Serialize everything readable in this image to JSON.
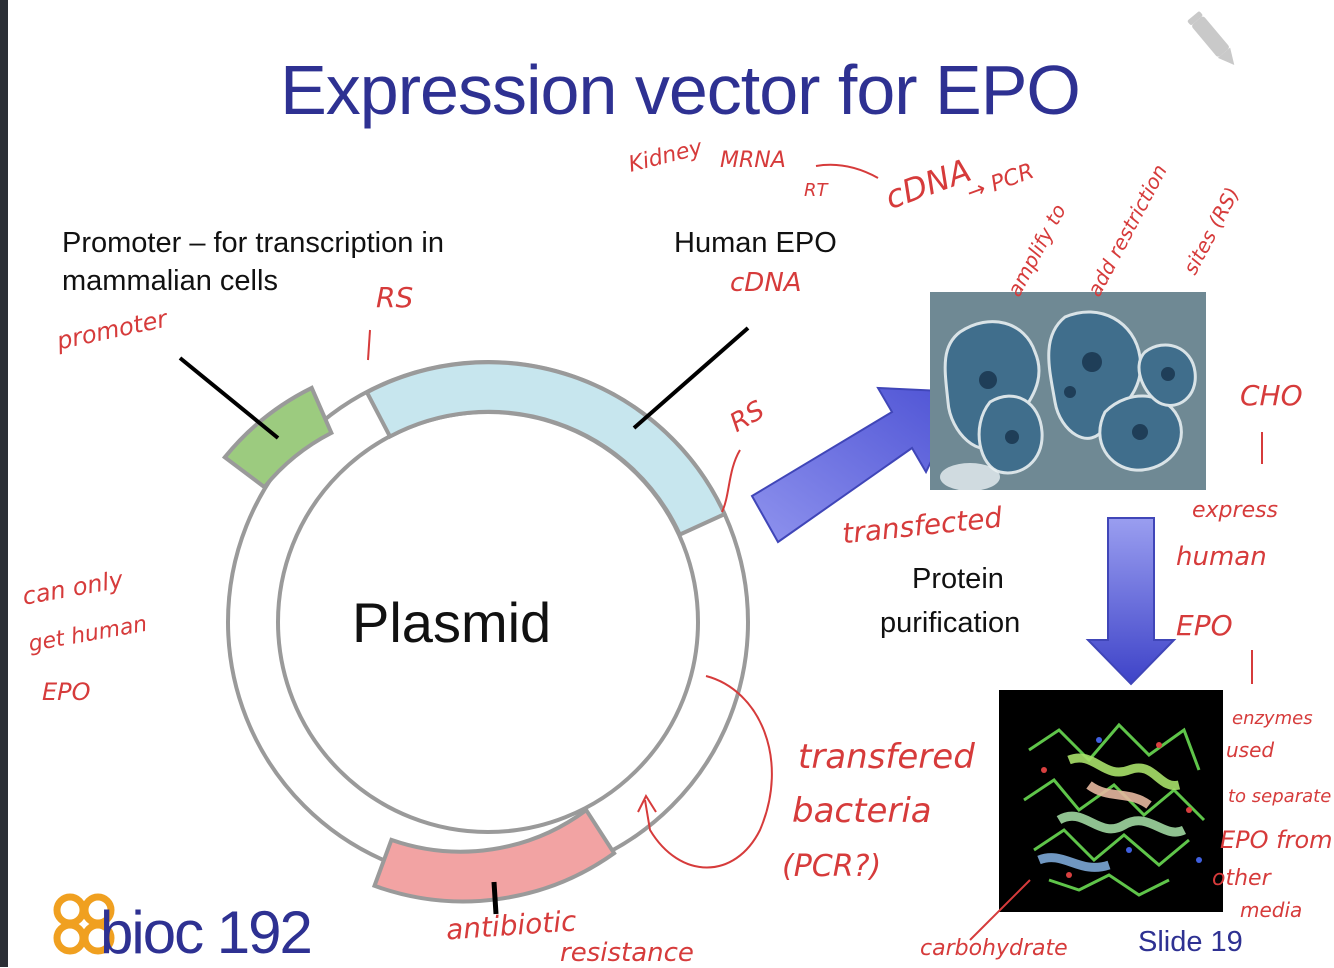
{
  "slide": {
    "title": "Expression vector for EPO",
    "slide_number": "Slide 19",
    "logo": "bioc 192"
  },
  "labels": {
    "promoter_line1": "Promoter – for transcription in",
    "promoter_line2": "mammalian cells",
    "human_epo": "Human EPO",
    "plasmid": "Plasmid",
    "protein_line1": "Protein",
    "protein_line2": "purification"
  },
  "annotations": {
    "kidney": "Kidney",
    "mrna": "MRNA",
    "rt": "RT",
    "cdna_top": "cDNA",
    "pcr": "→ PCR",
    "amplify_1": "amplify to",
    "amplify_2": "add restriction",
    "amplify_3": "sites (RS)",
    "rs_1": "RS",
    "cdna_2": "cDNA",
    "promoter": "promoter",
    "rs_2": "RS",
    "cho": "CHO",
    "expres": "express",
    "human": "human",
    "epo": "EPO",
    "transfected": "transfected",
    "can_only_1": "can only",
    "can_only_2": "get human",
    "can_only_3": "EPO",
    "transfered": "transfered",
    "bacteria": "bacteria",
    "pcr_q": "(PCR?)",
    "enzymes_1": "enzymes",
    "enzymes_2": "used",
    "enzymes_3": "to separate",
    "enzymes_4": "EPO from",
    "enzymes_5": "other",
    "enzymes_6": "media",
    "antibiotic_1": "antibiotic",
    "antibiotic_2": "resistance",
    "carbohydrate": "carbohydrate"
  },
  "colors": {
    "title": "#2e3192",
    "epo_segment": "#c7e6ee",
    "promoter_segment": "#9ccb7f",
    "resistance_segment": "#f2a3a3",
    "ring": "#9a9a9a",
    "arrow": "#5a5fd8",
    "ink": "#d63b3b",
    "logo_orange": "#f0a020"
  },
  "icons": {
    "edit": "pencil-icon"
  }
}
